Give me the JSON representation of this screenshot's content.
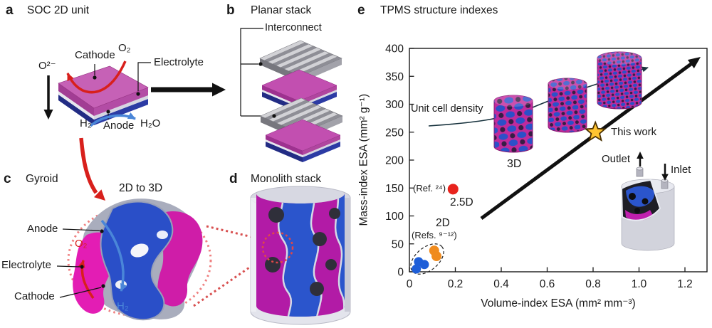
{
  "panels": {
    "a": {
      "label": "a",
      "title": "SOC 2D unit",
      "labels": {
        "o2_ion": "O²⁻",
        "cathode": "Cathode",
        "o2": "O₂",
        "electrolyte": "Electrolyte",
        "h2": "H₂",
        "anode": "Anode",
        "h2o": "H₂O"
      }
    },
    "b": {
      "label": "b",
      "title": "Planar stack",
      "labels": {
        "interconnect": "Interconnect"
      }
    },
    "c": {
      "label": "c",
      "title": "Gyroid",
      "labels": {
        "transition": "2D to 3D",
        "anode": "Anode",
        "o2": "O₂",
        "electrolyte": "Electrolyte",
        "cathode": "Cathode",
        "h2": "H₂"
      }
    },
    "d": {
      "label": "d",
      "title": "Monolith stack"
    },
    "e": {
      "label": "e",
      "title": "TPMS structure indexes"
    }
  },
  "palette": {
    "cathode_magenta": "#c24fb0",
    "anode_blue": "#2b3a9e",
    "electrolyte_gray": "#e6e6ee",
    "o2_red": "#d8201c",
    "h2_blue": "#4a86d8",
    "interconnect_gray": "#c6c6ca"
  },
  "chart_data": {
    "type": "scatter",
    "title": "TPMS structure indexes",
    "xlabel": "Volume-index ESA (mm² mm⁻³)",
    "ylabel": "Mass-index ESA (mm² g⁻¹)",
    "xlim": [
      0,
      1.3
    ],
    "ylim": [
      0,
      400
    ],
    "grid": false,
    "legend": "none",
    "xticks": {
      "values": [
        0,
        0.2,
        0.4,
        0.6,
        0.8,
        1.0,
        1.2
      ],
      "labels": [
        "0",
        "0.2",
        "0.4",
        "0.6",
        "0.8",
        "1.0",
        "1.2"
      ]
    },
    "yticks": {
      "values": [
        0,
        50,
        100,
        150,
        200,
        250,
        300,
        350,
        400
      ],
      "labels": [
        "0",
        "50",
        "100",
        "150",
        "200",
        "250",
        "300",
        "350",
        "400"
      ]
    },
    "series": [
      {
        "name": "2D planar cells (Refs. 9-12, blue)",
        "color": "#1e5ed8",
        "marker": "circle",
        "size": 6.5,
        "points": [
          [
            0.03,
            5
          ],
          [
            0.04,
            18
          ],
          [
            0.065,
            13
          ]
        ]
      },
      {
        "name": "2D planar cells (Refs. 9-12, orange)",
        "color": "#f08b1d",
        "marker": "circle",
        "size": 7,
        "points": [
          [
            0.108,
            38
          ],
          [
            0.118,
            28
          ]
        ]
      },
      {
        "name": "2.5D (Ref. 24)",
        "color": "#e8231d",
        "marker": "circle",
        "size": 7.5,
        "points": [
          [
            0.19,
            148
          ]
        ]
      },
      {
        "name": "This work (3D monolith)",
        "color": "#ffc430",
        "marker": "star",
        "size": 14,
        "points": [
          [
            0.81,
            250
          ]
        ]
      }
    ],
    "annotations": {
      "unit_cell_density": "Unit cell density",
      "three_d": "3D",
      "two_five_d": "2.5D",
      "ref24": "(Ref. ²⁴)",
      "two_d": "2D",
      "refs912": "(Refs. ⁹⁻¹²)",
      "this_work": "This work",
      "outlet": "Outlet",
      "inlet": "Inlet"
    }
  }
}
